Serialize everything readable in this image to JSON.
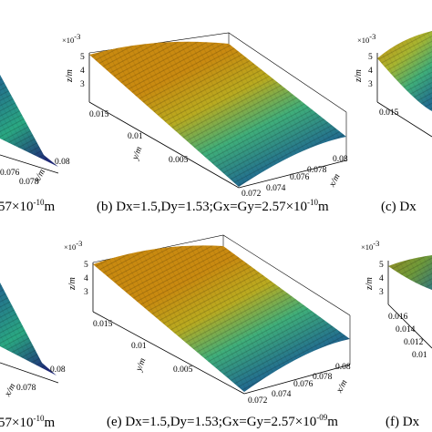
{
  "chart_data": [
    {
      "id": "a",
      "type": "surface",
      "caption": {
        "prefix": "",
        "base": "57×10",
        "exp": "-10",
        "unit": "m"
      },
      "x_ticks": [
        "0.076",
        "0.078",
        "0.08"
      ],
      "y_ticks": [],
      "z_ticks": [],
      "z_multiplier": "",
      "xlabel": "x/m",
      "ylabel": "",
      "zlabel": "",
      "colormap": [
        "#1f2a7a",
        "#2a6f8f",
        "#2aa882",
        "#8fbf3a",
        "#d9b000",
        "#c98a10"
      ]
    },
    {
      "id": "b",
      "type": "surface",
      "caption": {
        "prefix": "(b) Dx=1.5,Dy=1.53;Gx=Gy=2.",
        "base": "57×10",
        "exp": "-10",
        "unit": "m"
      },
      "x_ticks": [
        "0.072",
        "0.074",
        "0.076",
        "0.078",
        "0.08"
      ],
      "y_ticks": [
        "0.015",
        "0.01",
        "0.005"
      ],
      "z_ticks": [
        "5",
        "4",
        "3"
      ],
      "z_multiplier": "×10",
      "z_multiplier_exp": "-3",
      "xlabel": "x/m",
      "ylabel": "y/m",
      "zlabel": "z/m",
      "zlim": [
        0.003,
        0.005
      ],
      "colormap": [
        "#1f2a7a",
        "#2a6f8f",
        "#2aa882",
        "#8fbf3a",
        "#d9b000",
        "#c98a10"
      ]
    },
    {
      "id": "c",
      "type": "surface",
      "caption": {
        "prefix": "(c) Dx",
        "base": "",
        "exp": "",
        "unit": ""
      },
      "x_ticks": [],
      "y_ticks": [
        "0.015"
      ],
      "z_ticks": [
        "5",
        "4",
        "3"
      ],
      "z_multiplier": "×10",
      "z_multiplier_exp": "-3",
      "xlabel": "",
      "ylabel": "",
      "zlabel": "z/m",
      "colormap": [
        "#1f2a7a",
        "#2a6f8f",
        "#2aa882",
        "#8fbf3a",
        "#d9b000",
        "#c98a10"
      ]
    },
    {
      "id": "d",
      "type": "surface",
      "caption": {
        "prefix": "",
        "base": "57×10",
        "exp": "-10",
        "unit": "m"
      },
      "x_ticks": [
        "0.078",
        "0.08"
      ],
      "y_ticks": [],
      "z_ticks": [],
      "z_multiplier": "",
      "xlabel": "x/m",
      "ylabel": "",
      "zlabel": "",
      "colormap": [
        "#1f2a7a",
        "#2a6f8f",
        "#2aa882",
        "#8fbf3a",
        "#d9b000",
        "#c98a10"
      ]
    },
    {
      "id": "e",
      "type": "surface",
      "caption": {
        "prefix": "(e) Dx=1.5,Dy=1.53;Gx=Gy=2.",
        "base": "57×10",
        "exp": "-09",
        "unit": "m"
      },
      "x_ticks": [
        "0.072",
        "0.074",
        "0.076",
        "0.078",
        "0.08"
      ],
      "y_ticks": [
        "0.015",
        "0.01",
        "0.005"
      ],
      "z_ticks": [
        "5",
        "4",
        "3"
      ],
      "z_multiplier": "×10",
      "z_multiplier_exp": "-3",
      "xlabel": "x/m",
      "ylabel": "y/m",
      "zlabel": "z/m",
      "zlim": [
        0.003,
        0.005
      ],
      "colormap": [
        "#1f2a7a",
        "#2a6f8f",
        "#2aa882",
        "#8fbf3a",
        "#d9b000",
        "#c98a10"
      ]
    },
    {
      "id": "f",
      "type": "surface",
      "caption": {
        "prefix": "(f) Dx",
        "base": "",
        "exp": "",
        "unit": ""
      },
      "x_ticks": [],
      "y_ticks": [
        "0.016",
        "0.014",
        "0.012",
        "0.01"
      ],
      "z_ticks": [
        "5",
        "4",
        "3"
      ],
      "z_multiplier": "×10",
      "z_multiplier_exp": "-3",
      "xlabel": "",
      "ylabel": "",
      "zlabel": "z/m",
      "colormap": [
        "#1f2a7a",
        "#2a6f8f",
        "#2aa882",
        "#8fbf3a",
        "#d9b000",
        "#c98a10"
      ]
    }
  ]
}
